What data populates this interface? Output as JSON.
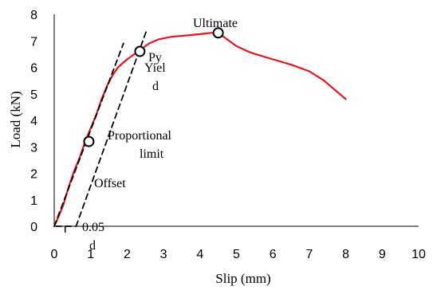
{
  "chart_data": {
    "type": "line",
    "title": "",
    "xlabel": "Slip (mm)",
    "ylabel": "Load (kN)",
    "xlim": [
      0,
      10
    ],
    "ylim": [
      0,
      8
    ],
    "x_ticks": [
      "0",
      "1",
      "2",
      "3",
      "4",
      "5",
      "6",
      "7",
      "8",
      "9",
      "10"
    ],
    "y_ticks": [
      "0",
      "1",
      "2",
      "3",
      "4",
      "5",
      "6",
      "7",
      "8"
    ],
    "grid": false,
    "legend": "none",
    "series": [
      {
        "color": "#e8141c",
        "style": "solid",
        "x": [
          0.0,
          0.1,
          0.25,
          0.4,
          0.55,
          0.7,
          0.85,
          1.0,
          1.15,
          1.3,
          1.45,
          1.6,
          1.75,
          2.0,
          2.3,
          2.6,
          2.85,
          3.2,
          3.6,
          4.0,
          4.3,
          4.5,
          4.7,
          5.0,
          5.4,
          6.0,
          6.5,
          7.0,
          7.4,
          7.7,
          8.0
        ],
        "y": [
          0.0,
          0.3,
          0.8,
          1.5,
          2.1,
          2.6,
          3.2,
          3.7,
          4.2,
          4.8,
          5.3,
          5.7,
          6.0,
          6.3,
          6.6,
          6.9,
          7.05,
          7.15,
          7.2,
          7.25,
          7.3,
          7.3,
          7.1,
          6.8,
          6.55,
          6.3,
          6.1,
          5.85,
          5.5,
          5.15,
          4.8
        ]
      },
      {
        "color": "#000000",
        "style": "dashed",
        "x": [
          0.0,
          1.9
        ],
        "y": [
          0.0,
          6.9
        ]
      },
      {
        "color": "#000000",
        "style": "dashed",
        "x": [
          0.6,
          2.55
        ],
        "y": [
          0.0,
          7.45
        ]
      },
      {
        "color": "#000000",
        "style": "dashed",
        "x": [
          0.05,
          0.6
        ],
        "y": [
          0.0,
          0.0
        ]
      }
    ],
    "points": [
      {
        "x": 0.95,
        "y": 3.2,
        "label": "Proportional limit"
      },
      {
        "x": 2.35,
        "y": 6.6,
        "label": "Py Yield"
      },
      {
        "x": 4.5,
        "y": 7.3,
        "label": "Ultimate"
      }
    ],
    "annotations": {
      "ultimate": "Ultimate",
      "py": "Py",
      "yield_line1": "Yiel",
      "yield_line2": "d",
      "proportional_line1": "Proportional",
      "proportional_line2": "limit",
      "offset": "Offset",
      "offset_value": "0.05",
      "offset_d": "d"
    }
  }
}
